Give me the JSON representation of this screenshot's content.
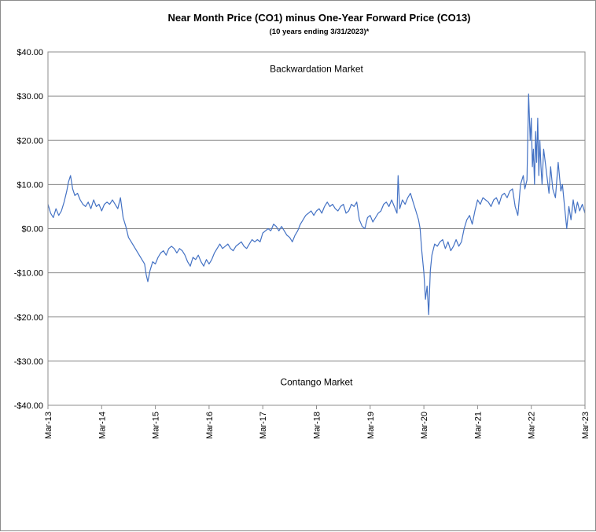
{
  "chart_data": {
    "type": "line",
    "title": "Near Month Price (CO1) minus One-Year Forward Price (CO13)",
    "subtitle": "(10 years ending  3/31/2023)*",
    "xlabel": "",
    "ylabel": "",
    "ylim": [
      -40,
      40
    ],
    "yticks": [
      40,
      30,
      20,
      10,
      0,
      -10,
      -20,
      -30,
      -40
    ],
    "ytick_labels": [
      "$40.00",
      "$30.00",
      "$20.00",
      "$10.00",
      "$0.00",
      "-$10.00",
      "-$20.00",
      "-$30.00",
      "-$40.00"
    ],
    "xlim": [
      2013.0,
      2023.0
    ],
    "xticks": [
      2013,
      2014,
      2015,
      2016,
      2017,
      2018,
      2019,
      2020,
      2021,
      2022,
      2023
    ],
    "xtick_labels": [
      "Mar-13",
      "Mar-14",
      "Mar-15",
      "Mar-16",
      "Mar-17",
      "Mar-18",
      "Mar-19",
      "Mar-20",
      "Mar-21",
      "Mar-22",
      "Mar-23"
    ],
    "grid": "horizontal",
    "legend": "none",
    "annotations": [
      {
        "text": "Backwardation Market",
        "x": 2018.0,
        "y": 35.5
      },
      {
        "text": "Contango Market",
        "x": 2018.0,
        "y": -35.5
      }
    ],
    "series": [
      {
        "color": "#4472c4",
        "x": [
          2013.0,
          2013.05,
          2013.1,
          2013.15,
          2013.2,
          2013.25,
          2013.3,
          2013.35,
          2013.38,
          2013.42,
          2013.46,
          2013.5,
          2013.55,
          2013.6,
          2013.65,
          2013.7,
          2013.75,
          2013.8,
          2013.85,
          2013.9,
          2013.95,
          2014.0,
          2014.05,
          2014.1,
          2014.15,
          2014.2,
          2014.25,
          2014.3,
          2014.35,
          2014.4,
          2014.45,
          2014.5,
          2014.55,
          2014.6,
          2014.65,
          2014.7,
          2014.75,
          2014.8,
          2014.83,
          2014.86,
          2014.9,
          2014.95,
          2015.0,
          2015.05,
          2015.1,
          2015.15,
          2015.2,
          2015.25,
          2015.3,
          2015.35,
          2015.4,
          2015.45,
          2015.5,
          2015.55,
          2015.6,
          2015.65,
          2015.7,
          2015.75,
          2015.8,
          2015.85,
          2015.9,
          2015.95,
          2016.0,
          2016.05,
          2016.1,
          2016.15,
          2016.2,
          2016.25,
          2016.3,
          2016.35,
          2016.4,
          2016.45,
          2016.5,
          2016.55,
          2016.6,
          2016.65,
          2016.7,
          2016.75,
          2016.8,
          2016.85,
          2016.9,
          2016.95,
          2017.0,
          2017.05,
          2017.1,
          2017.15,
          2017.2,
          2017.25,
          2017.3,
          2017.35,
          2017.4,
          2017.45,
          2017.5,
          2017.55,
          2017.6,
          2017.65,
          2017.7,
          2017.75,
          2017.8,
          2017.85,
          2017.9,
          2017.95,
          2018.0,
          2018.05,
          2018.1,
          2018.15,
          2018.2,
          2018.25,
          2018.3,
          2018.35,
          2018.4,
          2018.45,
          2018.5,
          2018.55,
          2018.6,
          2018.65,
          2018.7,
          2018.75,
          2018.8,
          2018.85,
          2018.9,
          2018.95,
          2019.0,
          2019.05,
          2019.1,
          2019.15,
          2019.2,
          2019.25,
          2019.3,
          2019.35,
          2019.4,
          2019.45,
          2019.5,
          2019.52,
          2019.55,
          2019.6,
          2019.65,
          2019.7,
          2019.75,
          2019.8,
          2019.85,
          2019.9,
          2019.93,
          2019.96,
          2020.0,
          2020.03,
          2020.06,
          2020.09,
          2020.12,
          2020.15,
          2020.2,
          2020.25,
          2020.3,
          2020.35,
          2020.4,
          2020.45,
          2020.5,
          2020.55,
          2020.6,
          2020.65,
          2020.7,
          2020.75,
          2020.8,
          2020.85,
          2020.9,
          2020.95,
          2021.0,
          2021.05,
          2021.1,
          2021.15,
          2021.2,
          2021.25,
          2021.3,
          2021.35,
          2021.4,
          2021.45,
          2021.5,
          2021.55,
          2021.6,
          2021.65,
          2021.7,
          2021.75,
          2021.8,
          2021.85,
          2021.88,
          2021.92,
          2021.95,
          2021.98,
          2022.0,
          2022.02,
          2022.04,
          2022.06,
          2022.08,
          2022.1,
          2022.12,
          2022.14,
          2022.16,
          2022.18,
          2022.2,
          2022.23,
          2022.26,
          2022.3,
          2022.33,
          2022.36,
          2022.4,
          2022.45,
          2022.5,
          2022.55,
          2022.58,
          2022.62,
          2022.66,
          2022.7,
          2022.74,
          2022.78,
          2022.82,
          2022.86,
          2022.9,
          2022.95,
          2023.0
        ],
        "y": [
          5.5,
          3.5,
          2.5,
          4.5,
          3.0,
          4.0,
          6.0,
          8.5,
          10.5,
          12.0,
          9.0,
          7.5,
          8.0,
          6.5,
          5.5,
          5.0,
          6.0,
          4.5,
          6.5,
          5.0,
          5.5,
          4.0,
          5.5,
          6.0,
          5.5,
          6.5,
          5.5,
          4.5,
          7.0,
          2.5,
          0.5,
          -2.0,
          -3.0,
          -4.0,
          -5.0,
          -6.0,
          -7.0,
          -8.0,
          -10.5,
          -12.0,
          -9.5,
          -7.5,
          -8.0,
          -6.5,
          -5.5,
          -5.0,
          -6.0,
          -4.5,
          -4.0,
          -4.5,
          -5.5,
          -4.5,
          -5.0,
          -6.0,
          -7.5,
          -8.5,
          -6.5,
          -7.0,
          -6.0,
          -7.5,
          -8.5,
          -7.0,
          -8.0,
          -7.0,
          -5.5,
          -4.5,
          -3.5,
          -4.5,
          -4.0,
          -3.5,
          -4.5,
          -5.0,
          -4.0,
          -3.5,
          -3.0,
          -4.0,
          -4.5,
          -3.5,
          -2.5,
          -3.0,
          -2.5,
          -3.0,
          -1.0,
          -0.5,
          0.0,
          -0.5,
          1.0,
          0.5,
          -0.5,
          0.5,
          -0.5,
          -1.5,
          -2.0,
          -3.0,
          -1.5,
          -0.5,
          1.0,
          2.0,
          3.0,
          3.5,
          4.0,
          3.0,
          4.0,
          4.5,
          3.5,
          5.0,
          6.0,
          5.0,
          5.5,
          4.5,
          4.0,
          5.0,
          5.5,
          3.5,
          4.0,
          5.5,
          5.0,
          6.0,
          2.0,
          0.5,
          0.0,
          2.5,
          3.0,
          1.5,
          2.5,
          3.5,
          4.0,
          5.5,
          6.0,
          5.0,
          6.5,
          5.0,
          3.5,
          12.0,
          4.5,
          6.5,
          5.5,
          7.0,
          8.0,
          6.0,
          4.0,
          2.0,
          0.0,
          -5.0,
          -10.0,
          -16.0,
          -13.0,
          -19.5,
          -9.5,
          -6.0,
          -3.5,
          -4.0,
          -3.0,
          -2.5,
          -4.5,
          -3.0,
          -5.0,
          -4.0,
          -2.5,
          -4.0,
          -3.0,
          0.0,
          2.0,
          3.0,
          1.0,
          4.0,
          6.5,
          5.5,
          7.0,
          6.5,
          6.0,
          5.0,
          6.5,
          7.0,
          5.5,
          7.5,
          8.0,
          7.0,
          8.5,
          9.0,
          5.0,
          3.0,
          10.0,
          12.0,
          9.0,
          11.0,
          30.5,
          20.0,
          25.0,
          14.0,
          18.0,
          10.0,
          22.0,
          15.0,
          25.0,
          12.0,
          20.0,
          14.0,
          10.0,
          18.0,
          15.0,
          11.0,
          8.0,
          14.0,
          9.0,
          7.0,
          15.0,
          8.5,
          10.0,
          5.0,
          0.0,
          5.0,
          2.0,
          6.5,
          3.5,
          6.0,
          4.0,
          5.5,
          3.5
        ]
      }
    ]
  }
}
